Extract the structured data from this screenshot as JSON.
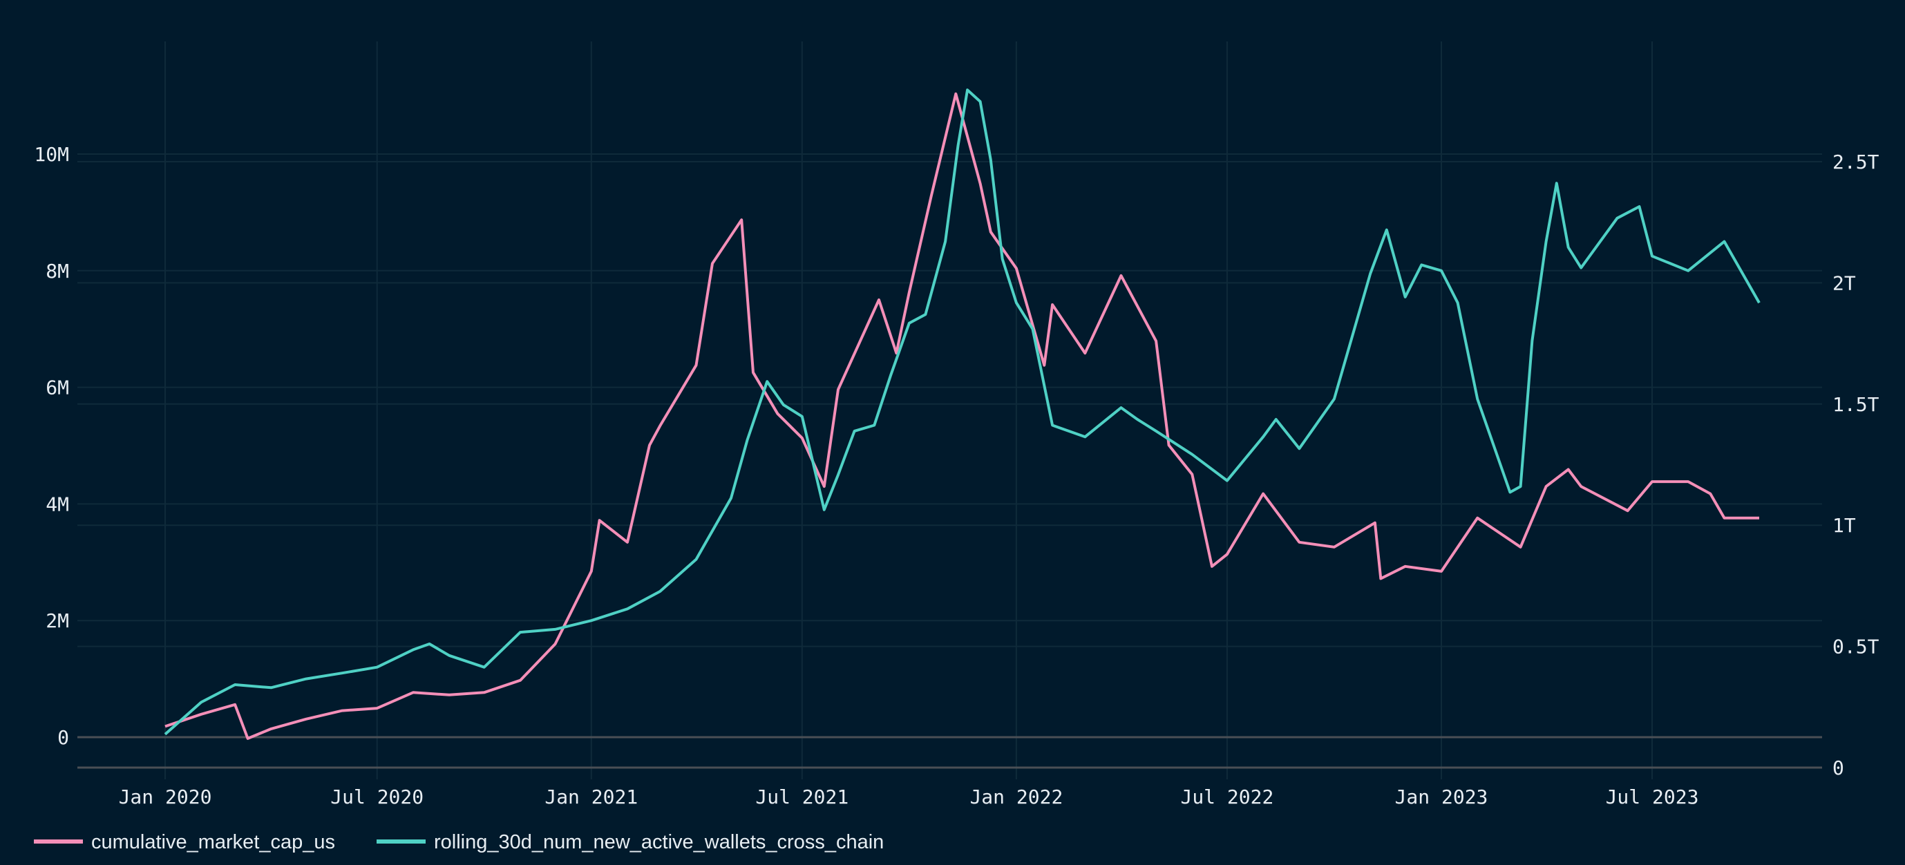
{
  "colors": {
    "background": "#011a2c",
    "cumulative_market_cap_us": "#f48fb8",
    "rolling_30d_num_new_active_wallets_cross_chain": "#4fd1c5",
    "grid": "#0f2a3a",
    "axis": "#4a4f55"
  },
  "chart_data": {
    "type": "line",
    "title": "",
    "grid": true,
    "legend_position": "bottom-left",
    "x_ticks": [
      "Jan 2020",
      "Jul 2020",
      "Jan 2021",
      "Jul 2021",
      "Jan 2022",
      "Jul 2022",
      "Jan 2023",
      "Jul 2023"
    ],
    "x_tick_dates": [
      "2020-01-01",
      "2020-07-01",
      "2021-01-01",
      "2021-07-01",
      "2022-01-01",
      "2022-07-01",
      "2023-01-01",
      "2023-07-01"
    ],
    "y_left": {
      "ticks": [
        "0",
        "2M",
        "4M",
        "6M",
        "8M",
        "10M"
      ],
      "tick_values": [
        0,
        2000000,
        4000000,
        6000000,
        8000000,
        10000000
      ]
    },
    "y_right": {
      "ticks": [
        "0",
        "0.5T",
        "1T",
        "1.5T",
        "2T",
        "2.5T"
      ],
      "tick_values": [
        0,
        500000000000,
        1000000000000,
        1500000000000,
        2000000000000,
        2500000000000
      ]
    },
    "series": [
      {
        "name": "cumulative_market_cap_us",
        "axis": "right",
        "unit": "T",
        "points": [
          [
            "2020-01-01",
            0.17
          ],
          [
            "2020-02-01",
            0.22
          ],
          [
            "2020-03-01",
            0.26
          ],
          [
            "2020-03-12",
            0.12
          ],
          [
            "2020-04-01",
            0.16
          ],
          [
            "2020-05-01",
            0.2
          ],
          [
            "2020-06-01",
            0.235
          ],
          [
            "2020-07-01",
            0.245
          ],
          [
            "2020-08-01",
            0.31
          ],
          [
            "2020-09-01",
            0.3
          ],
          [
            "2020-10-01",
            0.31
          ],
          [
            "2020-11-01",
            0.36
          ],
          [
            "2020-12-01",
            0.51
          ],
          [
            "2021-01-01",
            0.81
          ],
          [
            "2021-01-08",
            1.02
          ],
          [
            "2021-02-01",
            0.93
          ],
          [
            "2021-02-20",
            1.33
          ],
          [
            "2021-03-01",
            1.41
          ],
          [
            "2021-04-01",
            1.66
          ],
          [
            "2021-04-15",
            2.08
          ],
          [
            "2021-05-10",
            2.26
          ],
          [
            "2021-05-20",
            1.63
          ],
          [
            "2021-06-10",
            1.46
          ],
          [
            "2021-07-01",
            1.36
          ],
          [
            "2021-07-20",
            1.16
          ],
          [
            "2021-08-01",
            1.56
          ],
          [
            "2021-09-05",
            1.93
          ],
          [
            "2021-09-20",
            1.71
          ],
          [
            "2021-10-01",
            1.96
          ],
          [
            "2021-10-20",
            2.36
          ],
          [
            "2021-11-10",
            2.78
          ],
          [
            "2021-12-01",
            2.41
          ],
          [
            "2021-12-10",
            2.21
          ],
          [
            "2022-01-01",
            2.06
          ],
          [
            "2022-01-25",
            1.66
          ],
          [
            "2022-02-01",
            1.91
          ],
          [
            "2022-03-01",
            1.71
          ],
          [
            "2022-04-01",
            2.03
          ],
          [
            "2022-05-01",
            1.76
          ],
          [
            "2022-05-12",
            1.33
          ],
          [
            "2022-06-01",
            1.21
          ],
          [
            "2022-06-18",
            0.83
          ],
          [
            "2022-07-01",
            0.88
          ],
          [
            "2022-08-01",
            1.13
          ],
          [
            "2022-09-01",
            0.93
          ],
          [
            "2022-10-01",
            0.91
          ],
          [
            "2022-11-05",
            1.01
          ],
          [
            "2022-11-10",
            0.78
          ],
          [
            "2022-12-01",
            0.83
          ],
          [
            "2023-01-01",
            0.81
          ],
          [
            "2023-02-01",
            1.03
          ],
          [
            "2023-03-10",
            0.91
          ],
          [
            "2023-04-01",
            1.16
          ],
          [
            "2023-04-20",
            1.23
          ],
          [
            "2023-05-01",
            1.16
          ],
          [
            "2023-06-10",
            1.06
          ],
          [
            "2023-07-01",
            1.18
          ],
          [
            "2023-08-01",
            1.18
          ],
          [
            "2023-08-20",
            1.13
          ],
          [
            "2023-09-01",
            1.03
          ],
          [
            "2023-10-01",
            1.03
          ]
        ]
      },
      {
        "name": "rolling_30d_num_new_active_wallets_cross_chain",
        "axis": "left",
        "unit": "M",
        "points": [
          [
            "2020-01-01",
            0.05
          ],
          [
            "2020-02-01",
            0.6
          ],
          [
            "2020-03-01",
            0.9
          ],
          [
            "2020-04-01",
            0.85
          ],
          [
            "2020-05-01",
            1.0
          ],
          [
            "2020-06-01",
            1.1
          ],
          [
            "2020-07-01",
            1.2
          ],
          [
            "2020-08-01",
            1.5
          ],
          [
            "2020-08-15",
            1.6
          ],
          [
            "2020-09-01",
            1.4
          ],
          [
            "2020-10-01",
            1.2
          ],
          [
            "2020-11-01",
            1.8
          ],
          [
            "2020-12-01",
            1.85
          ],
          [
            "2021-01-01",
            2.0
          ],
          [
            "2021-02-01",
            2.2
          ],
          [
            "2021-03-01",
            2.5
          ],
          [
            "2021-04-01",
            3.05
          ],
          [
            "2021-05-01",
            4.1
          ],
          [
            "2021-05-15",
            5.1
          ],
          [
            "2021-06-01",
            6.1
          ],
          [
            "2021-06-15",
            5.7
          ],
          [
            "2021-07-01",
            5.5
          ],
          [
            "2021-07-20",
            3.9
          ],
          [
            "2021-08-01",
            4.5
          ],
          [
            "2021-08-15",
            5.25
          ],
          [
            "2021-09-01",
            5.35
          ],
          [
            "2021-09-15",
            6.2
          ],
          [
            "2021-10-01",
            7.1
          ],
          [
            "2021-10-15",
            7.25
          ],
          [
            "2021-11-01",
            8.5
          ],
          [
            "2021-11-12",
            10.15
          ],
          [
            "2021-11-20",
            11.1
          ],
          [
            "2021-12-01",
            10.9
          ],
          [
            "2021-12-10",
            9.9
          ],
          [
            "2021-12-20",
            8.2
          ],
          [
            "2022-01-01",
            7.45
          ],
          [
            "2022-01-15",
            7.0
          ],
          [
            "2022-02-01",
            5.35
          ],
          [
            "2022-03-01",
            5.15
          ],
          [
            "2022-04-01",
            5.65
          ],
          [
            "2022-04-15",
            5.45
          ],
          [
            "2022-05-01",
            5.25
          ],
          [
            "2022-06-01",
            4.85
          ],
          [
            "2022-07-01",
            4.4
          ],
          [
            "2022-08-01",
            5.15
          ],
          [
            "2022-08-12",
            5.45
          ],
          [
            "2022-09-01",
            4.95
          ],
          [
            "2022-10-01",
            5.8
          ],
          [
            "2022-11-01",
            7.95
          ],
          [
            "2022-11-15",
            8.7
          ],
          [
            "2022-12-01",
            7.55
          ],
          [
            "2022-12-15",
            8.1
          ],
          [
            "2023-01-01",
            8.0
          ],
          [
            "2023-01-15",
            7.45
          ],
          [
            "2023-02-01",
            5.8
          ],
          [
            "2023-03-01",
            4.2
          ],
          [
            "2023-03-10",
            4.3
          ],
          [
            "2023-03-20",
            6.8
          ],
          [
            "2023-04-01",
            8.5
          ],
          [
            "2023-04-10",
            9.5
          ],
          [
            "2023-04-20",
            8.4
          ],
          [
            "2023-05-01",
            8.05
          ],
          [
            "2023-06-01",
            8.9
          ],
          [
            "2023-06-20",
            9.1
          ],
          [
            "2023-07-01",
            8.25
          ],
          [
            "2023-08-01",
            8.0
          ],
          [
            "2023-09-01",
            8.5
          ],
          [
            "2023-10-01",
            7.45
          ]
        ]
      }
    ]
  }
}
